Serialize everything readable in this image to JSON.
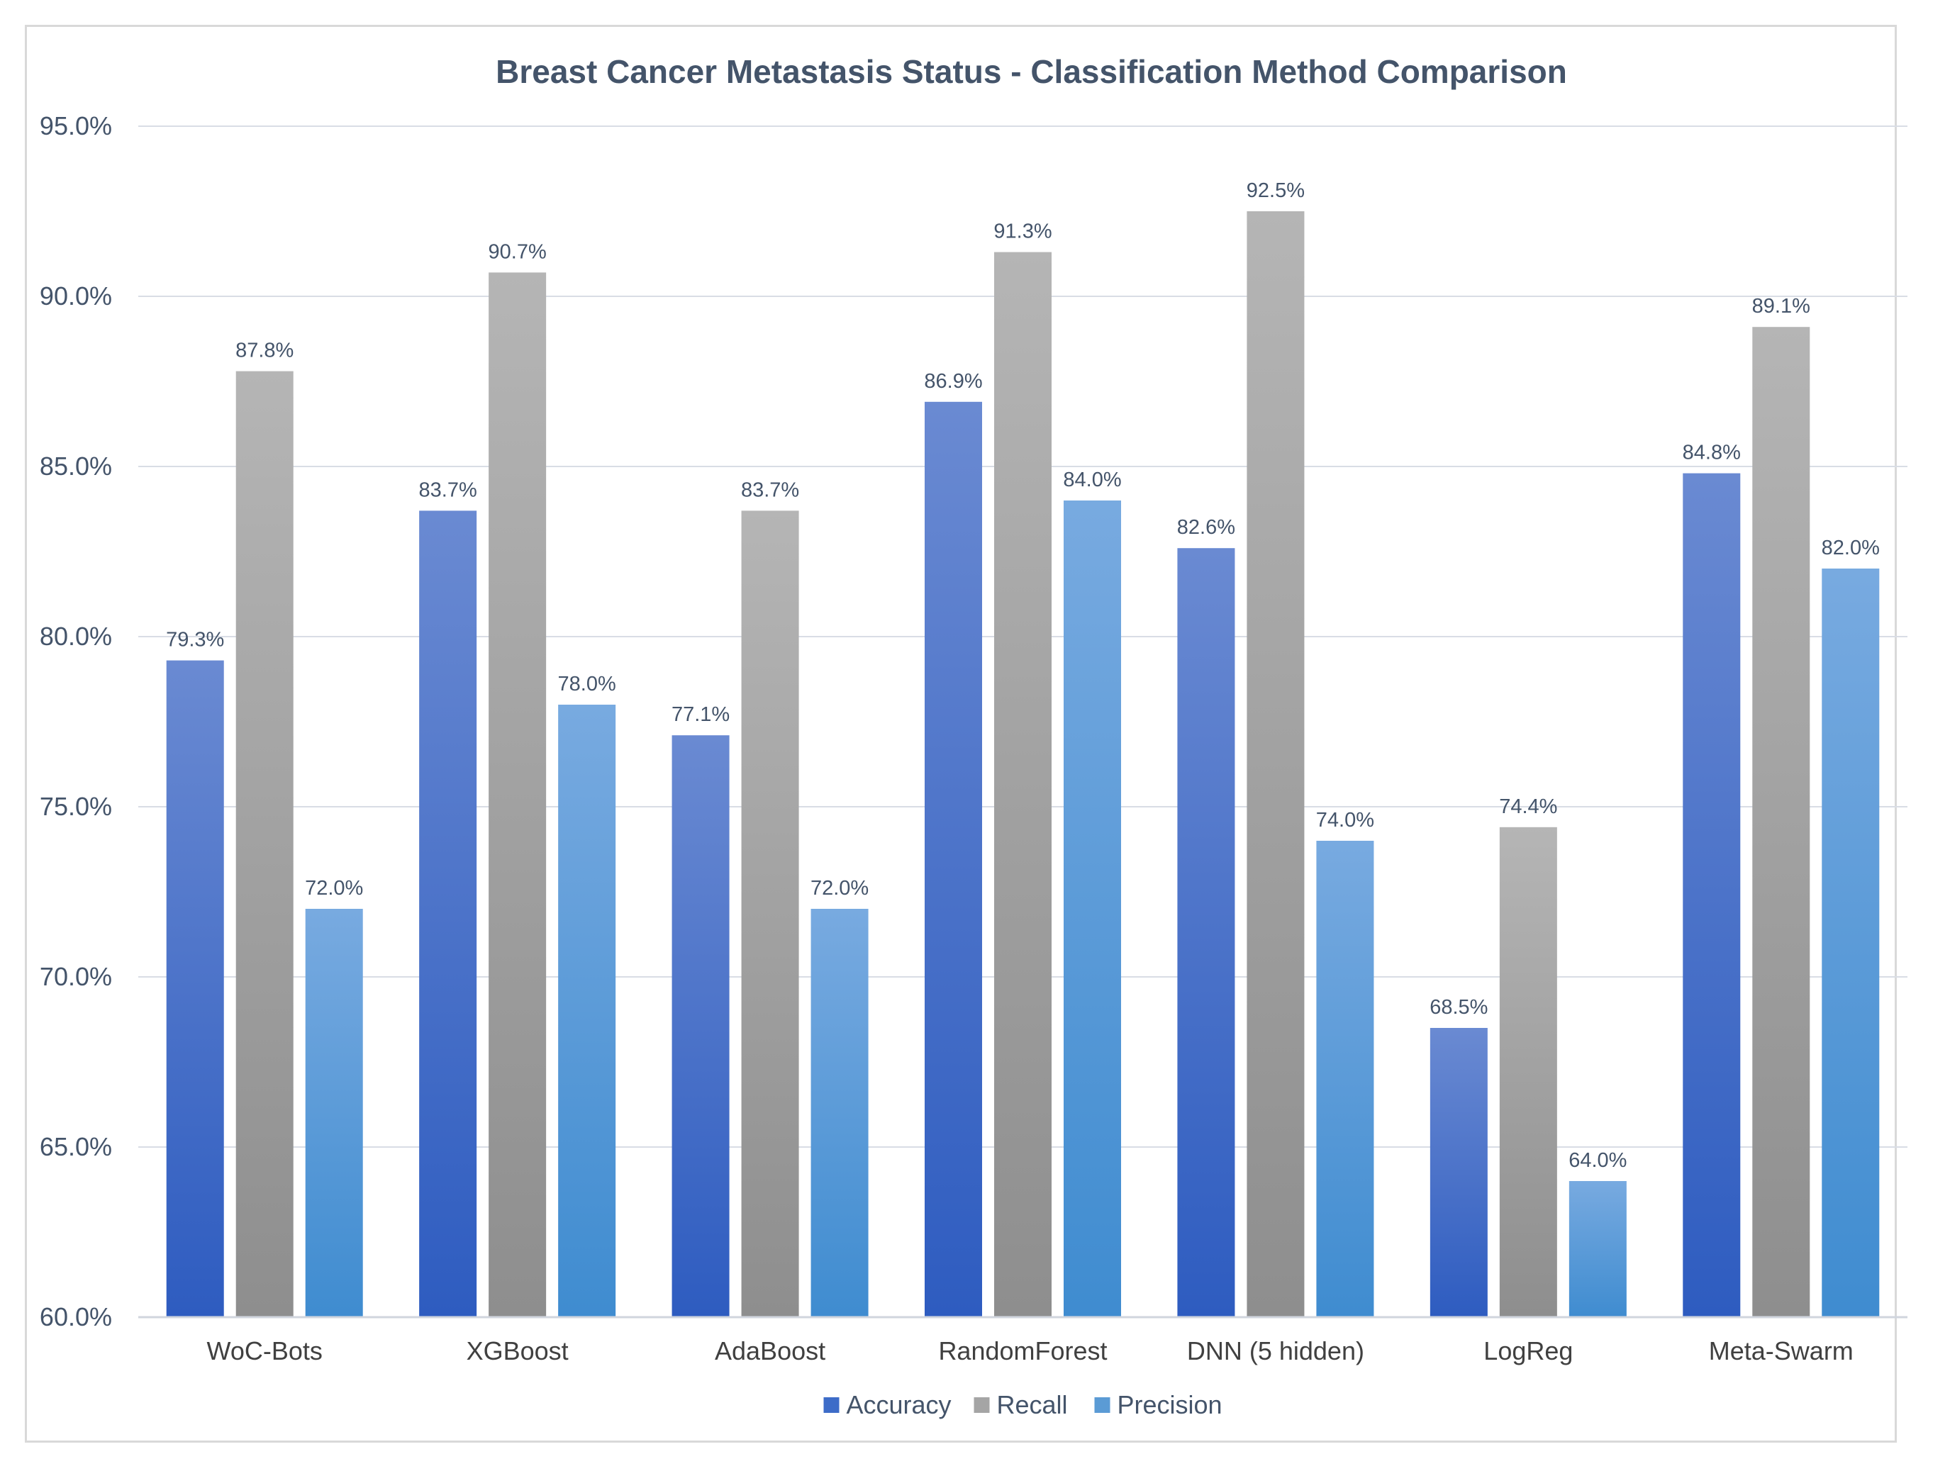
{
  "chart_data": {
    "type": "bar",
    "title": "Breast Cancer Metastasis Status - Classification Method Comparison",
    "xlabel": "",
    "ylabel": "",
    "categories": [
      "WoC-Bots",
      "XGBoost",
      "AdaBoost",
      "RandomForest",
      "DNN (5 hidden)",
      "LogReg",
      "Meta-Swarm"
    ],
    "series": [
      {
        "name": "Accuracy",
        "values": [
          79.3,
          83.7,
          77.1,
          86.9,
          82.6,
          68.5,
          84.8
        ],
        "color": "#3d6cc8"
      },
      {
        "name": "Recall",
        "values": [
          87.8,
          90.7,
          83.7,
          91.3,
          92.5,
          74.4,
          89.1
        ],
        "color": "#a5a5a5"
      },
      {
        "name": "Precision",
        "values": [
          72.0,
          78.0,
          72.0,
          84.0,
          74.0,
          64.0,
          82.0
        ],
        "color": "#5b9bd5"
      }
    ],
    "data_labels": [
      [
        "79.3%",
        "83.7%",
        "77.1%",
        "86.9%",
        "82.6%",
        "68.5%",
        "84.8%"
      ],
      [
        "87.8%",
        "90.7%",
        "83.7%",
        "91.3%",
        "92.5%",
        "74.4%",
        "89.1%"
      ],
      [
        "72.0%",
        "78.0%",
        "72.0%",
        "84.0%",
        "74.0%",
        "64.0%",
        "82.0%"
      ]
    ],
    "ylim": [
      60,
      95
    ],
    "yticks": [
      60,
      65,
      70,
      75,
      80,
      85,
      90,
      95
    ],
    "ytick_labels": [
      "60.0%",
      "65.0%",
      "70.0%",
      "75.0%",
      "80.0%",
      "85.0%",
      "90.0%",
      "95.0%"
    ],
    "grid": true,
    "legend_position": "bottom"
  }
}
